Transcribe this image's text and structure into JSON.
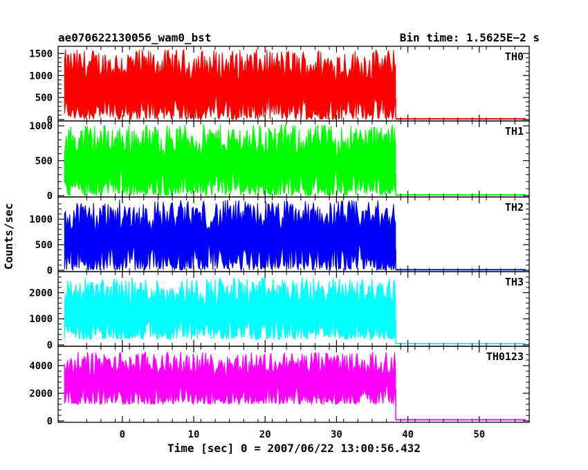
{
  "chart_data": {
    "type": "line",
    "title": "ae070622130056_wam0_bst",
    "subtitle": "Bin time: 1.5625E−2 s",
    "xlabel": "Time [sec] 0 = 2007/06/22 13:00:56.432",
    "ylabel": "Counts/sec",
    "xlim": [
      -9,
      57
    ],
    "x_ticks": [
      0,
      10,
      20,
      30,
      40,
      50
    ],
    "x_tick_labels": [
      "0",
      "10",
      "20",
      "30",
      "40",
      "50"
    ],
    "burst_end": 38.3,
    "grid": false,
    "panels": [
      {
        "name": "TH0",
        "color": "#ff0000",
        "ylim": [
          0,
          1600
        ],
        "yticks": [
          0,
          500,
          1000,
          1500
        ],
        "ytick_labels": [
          "0",
          "500",
          "1000",
          "1500"
        ],
        "active_low": 0,
        "active_high": 1600,
        "quiet_level": 15
      },
      {
        "name": "TH1",
        "color": "#00ff00",
        "ylim": [
          0,
          1030
        ],
        "yticks": [
          0,
          500,
          1000
        ],
        "ytick_labels": [
          "0",
          "500",
          "1000"
        ],
        "active_low": 0,
        "active_high": 1030,
        "quiet_level": 10
      },
      {
        "name": "TH2",
        "color": "#0000ff",
        "ylim": [
          0,
          1380
        ],
        "yticks": [
          0,
          500,
          1000
        ],
        "ytick_labels": [
          "0",
          "500",
          "1000"
        ],
        "active_low": 0,
        "active_high": 1380,
        "quiet_level": 10
      },
      {
        "name": "TH3",
        "color": "#00ffff",
        "ylim": [
          0,
          2700
        ],
        "yticks": [
          0,
          1000,
          2000
        ],
        "ytick_labels": [
          "0",
          "1000",
          "2000"
        ],
        "active_low": 200,
        "active_high": 2600,
        "quiet_level": 50
      },
      {
        "name": "TH0123",
        "color": "#ff00ff",
        "ylim": [
          0,
          5200
        ],
        "yticks": [
          0,
          2000,
          4000
        ],
        "ytick_labels": [
          "0",
          "2000",
          "4000"
        ],
        "active_low": 1200,
        "active_high": 5000,
        "quiet_level": 80
      }
    ]
  }
}
